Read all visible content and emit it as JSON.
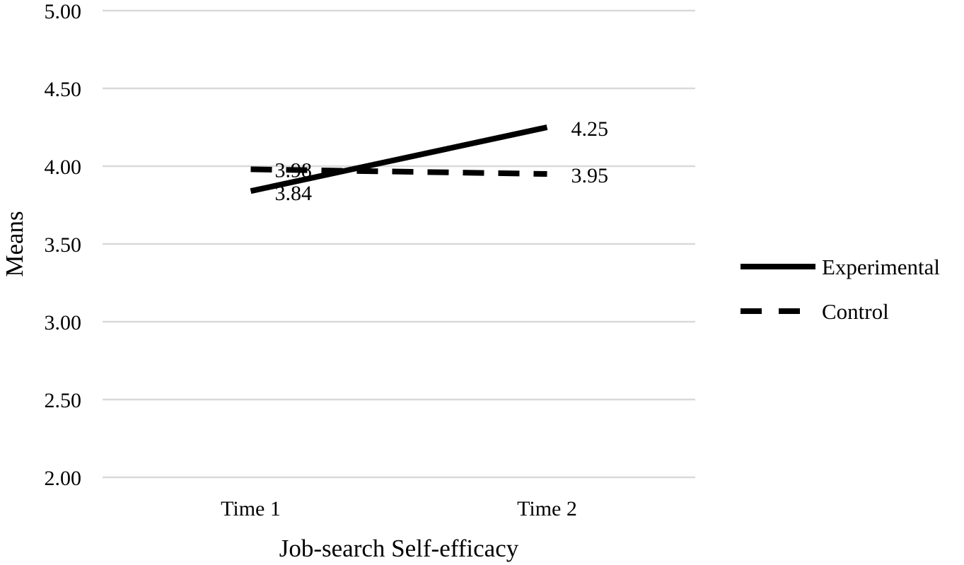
{
  "chart_data": {
    "type": "line",
    "categories": [
      "Time 1",
      "Time 2"
    ],
    "series": [
      {
        "name": "Experimental",
        "values": [
          3.84,
          4.25
        ],
        "labels": [
          "3.84",
          "4.25"
        ],
        "style": "solid",
        "color": "#000000"
      },
      {
        "name": "Control",
        "values": [
          3.98,
          3.95
        ],
        "labels": [
          "3.98",
          "3.95"
        ],
        "style": "dashed",
        "color": "#000000"
      }
    ],
    "xlabel": "Job-search Self-efficacy",
    "ylabel": "Means",
    "ylim": [
      2.0,
      5.0
    ],
    "yticks": [
      "2.00",
      "2.50",
      "3.00",
      "3.50",
      "4.00",
      "4.50",
      "5.00"
    ],
    "grid": true,
    "legend_position": "right",
    "gridline_color": "#d9d9d9"
  }
}
